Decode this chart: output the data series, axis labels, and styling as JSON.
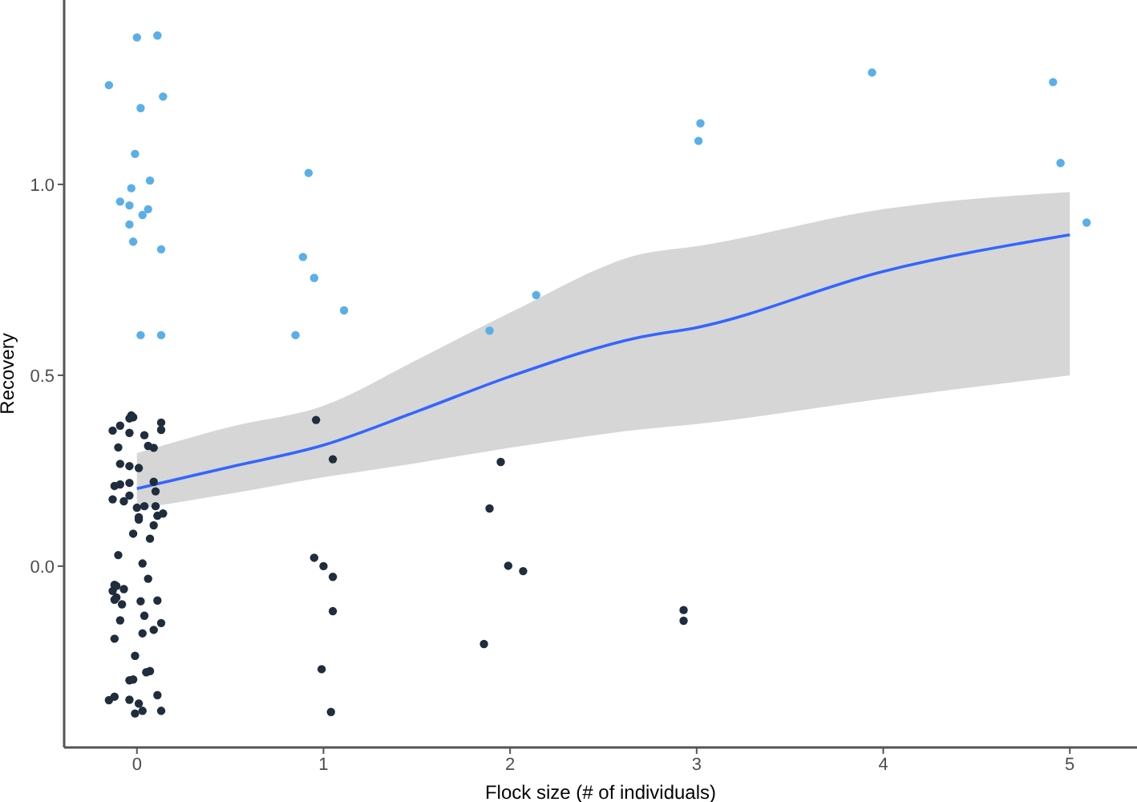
{
  "chart_data": {
    "type": "scatter",
    "xlabel": "Flock size (# of individuals)",
    "ylabel": "Recovery",
    "xlim": [
      -0.39,
      5.36
    ],
    "ylim": [
      -0.475,
      1.483
    ],
    "xticks": [
      0,
      1,
      2,
      3,
      4,
      5
    ],
    "yticks": [
      {
        "value": 0,
        "label": "0.0"
      },
      {
        "value": 0.5,
        "label": "0.5"
      },
      {
        "value": 1,
        "label": "1.0"
      }
    ],
    "grid": false,
    "legend": false,
    "marker": "circle",
    "series": [
      {
        "color": "#5aafe8",
        "x": [
          0.0,
          0.11,
          -0.15,
          0.14,
          0.02,
          -0.01,
          0.07,
          -0.03,
          -0.09,
          -0.04,
          0.06,
          0.03,
          -0.04,
          -0.02,
          0.13,
          0.02,
          0.13,
          0.92,
          0.89,
          0.95,
          1.11,
          0.85,
          1.89,
          2.14,
          3.02,
          3.01,
          3.94,
          4.91,
          4.95,
          5.09
        ],
        "values": [
          1.385,
          1.39,
          1.26,
          1.23,
          1.2,
          1.08,
          1.01,
          0.99,
          0.955,
          0.945,
          0.935,
          0.92,
          0.895,
          0.85,
          0.83,
          0.605,
          0.605,
          1.03,
          0.81,
          0.755,
          0.67,
          0.605,
          0.617,
          0.71,
          1.16,
          1.114,
          1.293,
          1.268,
          1.056,
          0.9
        ]
      },
      {
        "color": "#1f2d3d",
        "x": [
          0.96,
          1.05,
          1.95,
          1.89,
          0.95,
          1.0,
          1.05,
          1.99,
          2.07,
          1.05,
          2.93,
          2.93,
          1.86,
          0.99,
          1.04,
          -0.03,
          -0.02,
          -0.04,
          -0.09,
          0.13,
          0.13,
          -0.13,
          -0.04,
          0.04,
          -0.1,
          0.06,
          0.09,
          -0.09,
          -0.04,
          0.01,
          -0.12,
          -0.09,
          -0.04,
          0.09,
          0.1,
          -0.13,
          -0.07,
          -0.04,
          0.0,
          0.04,
          0.1,
          0.01,
          0.01,
          0.11,
          0.14,
          0.09,
          -0.02,
          0.07,
          -0.1,
          0.03,
          0.06,
          -0.12,
          -0.11,
          -0.07,
          -0.13,
          -0.12,
          -0.11,
          -0.08,
          0.02,
          0.11,
          0.04,
          -0.09,
          0.13,
          0.09,
          0.03,
          -0.12,
          -0.01,
          0.05,
          0.07,
          -0.04,
          -0.02,
          -0.15,
          -0.12,
          -0.04,
          0.01,
          0.11,
          0.03,
          -0.01,
          0.13
        ],
        "values": [
          0.383,
          0.28,
          0.273,
          0.151,
          0.022,
          0.0,
          -0.028,
          0.001,
          -0.013,
          -0.118,
          -0.115,
          -0.143,
          -0.204,
          -0.27,
          -0.382,
          0.395,
          0.39,
          0.387,
          0.368,
          0.376,
          0.357,
          0.355,
          0.349,
          0.343,
          0.311,
          0.315,
          0.31,
          0.268,
          0.262,
          0.257,
          0.21,
          0.214,
          0.218,
          0.221,
          0.196,
          0.175,
          0.17,
          0.185,
          0.153,
          0.157,
          0.157,
          0.122,
          0.128,
          0.132,
          0.138,
          0.107,
          0.085,
          0.072,
          0.029,
          0.007,
          -0.033,
          -0.049,
          -0.052,
          -0.06,
          -0.065,
          -0.088,
          -0.082,
          -0.1,
          -0.092,
          -0.09,
          -0.13,
          -0.142,
          -0.149,
          -0.167,
          -0.176,
          -0.19,
          -0.235,
          -0.278,
          -0.275,
          -0.299,
          -0.297,
          -0.351,
          -0.342,
          -0.35,
          -0.36,
          -0.338,
          -0.379,
          -0.386,
          -0.379
        ]
      },
      {
        "type": "line",
        "color": "#3366ff",
        "marker": "none",
        "line_style": "solid",
        "x": [
          0,
          0.5,
          1,
          1.5,
          2,
          2.7,
          3,
          4,
          5
        ],
        "values": [
          0.203,
          0.26,
          0.317,
          0.405,
          0.497,
          0.6,
          0.625,
          0.772,
          0.868
        ],
        "lower": [
          0.15,
          0.19,
          0.233,
          0.27,
          0.31,
          0.358,
          0.372,
          0.439,
          0.5
        ],
        "upper": [
          0.296,
          0.365,
          0.42,
          0.54,
          0.664,
          0.817,
          0.838,
          0.935,
          0.98
        ]
      }
    ]
  }
}
